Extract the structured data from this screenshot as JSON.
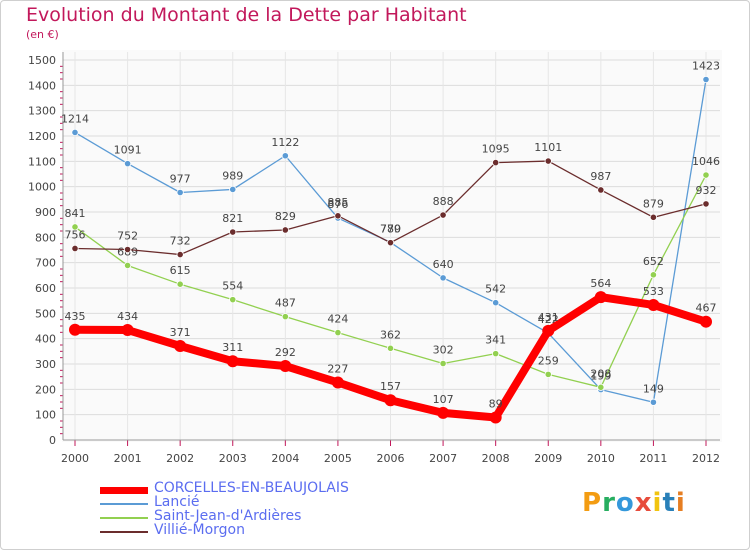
{
  "title": "Evolution du Montant de la Dette par Habitant",
  "unit": "(en €)",
  "logo": {
    "text": "Proxiti",
    "colors": [
      "#f39c12",
      "#27ae60",
      "#3498db",
      "#e74c3c",
      "#f1c40f",
      "#2980b9",
      "#e67e22"
    ]
  },
  "chart_data": {
    "type": "line",
    "x": [
      "2000",
      "2001",
      "2002",
      "2003",
      "2004",
      "2005",
      "2006",
      "2007",
      "2008",
      "2009",
      "2010",
      "2011",
      "2012"
    ],
    "ylim": [
      0,
      1500
    ],
    "yticks": [
      "0",
      "100",
      "200",
      "300",
      "400",
      "500",
      "600",
      "700",
      "800",
      "900",
      "1000",
      "1100",
      "1200",
      "1300",
      "1400",
      "1500"
    ],
    "grid": true,
    "legend_position": "bottom-left",
    "series": [
      {
        "name": "Lancié",
        "color": "#5b9bd5",
        "values": [
          1214,
          1091,
          977,
          989,
          1122,
          876,
          780,
          640,
          542,
          422,
          199,
          149,
          1423
        ]
      },
      {
        "name": "Saint-Jean-d'Ardières",
        "color": "#92d050",
        "values": [
          841,
          689,
          615,
          554,
          487,
          424,
          362,
          302,
          341,
          259,
          208,
          652,
          1046
        ]
      },
      {
        "name": "Villié-Morgon",
        "color": "#6b2d2d",
        "values": [
          756,
          752,
          732,
          821,
          829,
          885,
          779,
          888,
          1095,
          1101,
          987,
          879,
          932
        ]
      },
      {
        "name": "CORCELLES-EN-BEAUJOLAIS",
        "color": "#ff0000",
        "values": [
          435,
          434,
          371,
          311,
          292,
          227,
          157,
          107,
          89,
          431,
          564,
          533,
          467
        ]
      }
    ],
    "legend_order": [
      3,
      0,
      1,
      2
    ]
  }
}
